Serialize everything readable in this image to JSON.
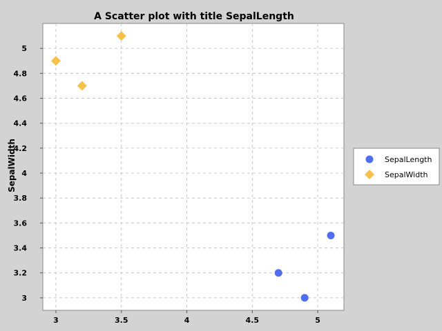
{
  "chart_data": {
    "type": "scatter",
    "title": "A Scatter plot with title SepalLength",
    "xlabel": "",
    "ylabel": "SepalWidth",
    "xlim": [
      2.9,
      5.2
    ],
    "ylim": [
      2.9,
      5.2
    ],
    "x_ticks": [
      "3",
      "3.5",
      "4",
      "4.5",
      "5"
    ],
    "y_ticks": [
      "3",
      "3.2",
      "3.4",
      "3.6",
      "3.8",
      "4",
      "4.2",
      "4.4",
      "4.6",
      "4.8",
      "5"
    ],
    "grid": true,
    "legend_position": "right",
    "series": [
      {
        "name": "SepalLength",
        "marker": "circle",
        "color": "#4f6ff0",
        "points": [
          {
            "x": 5.1,
            "y": 3.5
          },
          {
            "x": 4.7,
            "y": 3.2
          },
          {
            "x": 4.9,
            "y": 3.0
          }
        ]
      },
      {
        "name": "SepalWidth",
        "marker": "diamond",
        "color": "#f7c04a",
        "points": [
          {
            "x": 3.0,
            "y": 4.9
          },
          {
            "x": 3.2,
            "y": 4.7
          },
          {
            "x": 3.5,
            "y": 5.1
          }
        ]
      }
    ]
  }
}
